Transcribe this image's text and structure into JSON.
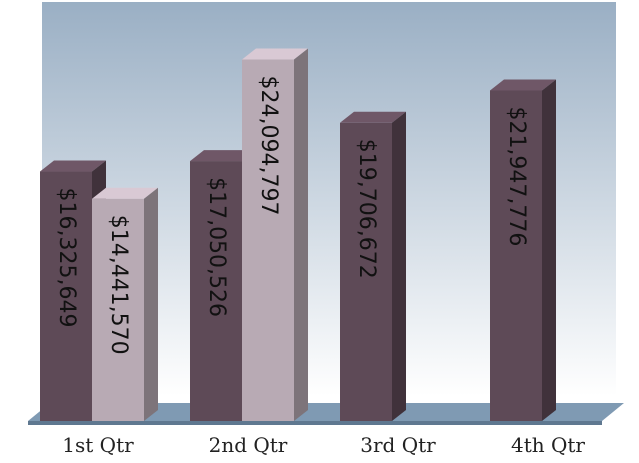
{
  "chart_data": {
    "type": "bar",
    "categories": [
      "1st Qtr",
      "2nd Qtr",
      "3rd Qtr",
      "4th Qtr"
    ],
    "series": [
      {
        "values": [
          16325649,
          17050526,
          19706672,
          21947776
        ],
        "color": "#5e4a57"
      },
      {
        "values": [
          14441570,
          24094797,
          null,
          null
        ],
        "color": "#b8aab4"
      }
    ],
    "data_labels": [
      [
        "$16,325,649",
        "$17,050,526",
        "$19,706,672",
        "$21,947,776"
      ],
      [
        "$14,441,570",
        "$24,094,797",
        null,
        null
      ]
    ],
    "ylim": [
      0,
      26000000
    ],
    "grid": false,
    "legend": "none",
    "style": "3d-column",
    "background_gradient": [
      "#9aafc4",
      "#ffffff"
    ],
    "floor_color": "#7f9ab3"
  }
}
